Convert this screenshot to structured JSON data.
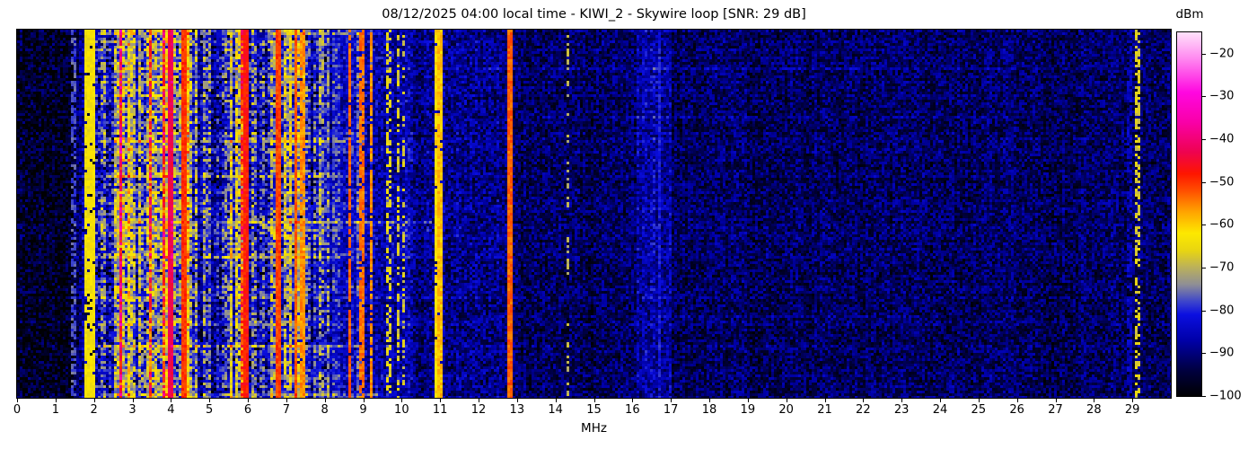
{
  "title": "08/12/2025 04:00 local time - KIWI_2 - Skywire loop [SNR: 29 dB]",
  "axes": {
    "xlabel": "MHz",
    "x_ticks": [
      0,
      1,
      2,
      3,
      4,
      5,
      6,
      7,
      8,
      9,
      10,
      11,
      12,
      13,
      14,
      15,
      16,
      17,
      18,
      19,
      20,
      21,
      22,
      23,
      24,
      25,
      26,
      27,
      28,
      29
    ],
    "y_axis": "time (no ticks shown)"
  },
  "colorbar": {
    "label": "dBm",
    "ticks": [
      -20,
      -30,
      -40,
      -50,
      -60,
      -70,
      -80,
      -90,
      -100
    ],
    "range": [
      -100,
      -15
    ],
    "stops": [
      {
        "dbm": -100,
        "color": "#000002"
      },
      {
        "dbm": -94,
        "color": "#000040"
      },
      {
        "dbm": -87,
        "color": "#0000a8"
      },
      {
        "dbm": -81,
        "color": "#0b0fe0"
      },
      {
        "dbm": -78,
        "color": "#3c44cc"
      },
      {
        "dbm": -74,
        "color": "#8e8e96"
      },
      {
        "dbm": -70,
        "color": "#bab05c"
      },
      {
        "dbm": -66,
        "color": "#e8d511"
      },
      {
        "dbm": -62,
        "color": "#fde900"
      },
      {
        "dbm": -57,
        "color": "#ffa400"
      },
      {
        "dbm": -52,
        "color": "#ff4e00"
      },
      {
        "dbm": -48,
        "color": "#fe1500"
      },
      {
        "dbm": -43,
        "color": "#ee0350"
      },
      {
        "dbm": -36,
        "color": "#f900a8"
      },
      {
        "dbm": -29,
        "color": "#ff07e0"
      },
      {
        "dbm": -21,
        "color": "#ff8af0"
      },
      {
        "dbm": -15,
        "color": "#ffe2fb"
      }
    ]
  },
  "chart_data": {
    "type": "heatmap",
    "title": "08/12/2025 04:00 local time - KIWI_2 - Skywire loop [SNR: 29 dB]",
    "xlabel": "MHz",
    "x_range": [
      0,
      30
    ],
    "value_unit": "dBm",
    "value_range": [
      -100,
      -15
    ],
    "description": "HF spectrogram waterfall: quiet noise floor near -95 dBm at 0-1.5 MHz and above 13 MHz; dense broadcast/utility activity from 2 to 7.5 MHz reaching -45 dBm with occasional -40 dBm magenta columns near 4 MHz; isolated strong carriers near 10.9-11.0 and 12.8 MHz; slightly elevated blue band 16.1-17 MHz; sparse dotted carriers near 29 MHz.",
    "bands": [
      {
        "f0": 0.0,
        "f1": 1.5,
        "base": -96,
        "col_var": 1.5,
        "noise": 7,
        "row": 0.3,
        "hot": 0,
        "hot_boost": 0,
        "pink": 0
      },
      {
        "f0": 1.5,
        "f1": 2.05,
        "base": -90,
        "col_var": 4,
        "noise": 7,
        "row": 0.5,
        "hot": 0.02,
        "hot_boost": 10,
        "pink": 0
      },
      {
        "f0": 2.05,
        "f1": 2.55,
        "base": -77,
        "col_var": 10,
        "noise": 8.5,
        "row": 1,
        "hot": 0.08,
        "hot_boost": 14,
        "pink": 0
      },
      {
        "f0": 2.55,
        "f1": 4.45,
        "base": -71,
        "col_var": 12,
        "noise": 9,
        "row": 1,
        "hot": 0.17,
        "hot_boost": 15,
        "pink": 0.025
      },
      {
        "f0": 4.45,
        "f1": 5.35,
        "base": -78,
        "col_var": 10,
        "noise": 8.5,
        "row": 1,
        "hot": 0.06,
        "hot_boost": 15,
        "pink": 0
      },
      {
        "f0": 5.35,
        "f1": 6.45,
        "base": -74,
        "col_var": 12,
        "noise": 9,
        "row": 1,
        "hot": 0.13,
        "hot_boost": 15,
        "pink": 0.004
      },
      {
        "f0": 6.45,
        "f1": 7.55,
        "base": -74,
        "col_var": 12,
        "noise": 9,
        "row": 1,
        "hot": 0.12,
        "hot_boost": 15,
        "pink": 0
      },
      {
        "f0": 7.55,
        "f1": 8.15,
        "base": -80,
        "col_var": 8,
        "noise": 8,
        "row": 0.8,
        "hot": 0.04,
        "hot_boost": 13,
        "pink": 0
      },
      {
        "f0": 8.15,
        "f1": 9.35,
        "base": -84,
        "col_var": 4,
        "noise": 7,
        "row": 0.6,
        "hot": 0.02,
        "hot_boost": 8,
        "pink": 0
      },
      {
        "f0": 9.35,
        "f1": 10.35,
        "base": -86,
        "col_var": 3,
        "noise": 7,
        "row": 0.5,
        "hot": 0.01,
        "hot_boost": 6,
        "pink": 0
      },
      {
        "f0": 10.35,
        "f1": 12.75,
        "base": -89,
        "col_var": 2,
        "noise": 7,
        "row": 0.4,
        "hot": 0,
        "hot_boost": 0,
        "pink": 0
      },
      {
        "f0": 12.75,
        "f1": 16.1,
        "base": -92,
        "col_var": 1.5,
        "noise": 6.5,
        "row": 0.3,
        "hot": 0,
        "hot_boost": 0,
        "pink": 0
      },
      {
        "f0": 16.1,
        "f1": 17.05,
        "base": -87,
        "col_var": 2,
        "noise": 6.5,
        "row": 0.4,
        "hot": 0,
        "hot_boost": 0,
        "pink": 0
      },
      {
        "f0": 17.05,
        "f1": 30.0,
        "base": -92,
        "col_var": 1.5,
        "noise": 6.5,
        "row": 0.3,
        "hot": 0,
        "hot_boost": 0,
        "pink": 0
      }
    ],
    "carriers": [
      {
        "f": 1.47,
        "w": 2,
        "dbm": -77,
        "duty": 0.6
      },
      {
        "f": 1.84,
        "w": 2,
        "dbm": -64,
        "duty": 0.9
      },
      {
        "f": 1.95,
        "w": 2,
        "dbm": -63,
        "duty": 0.95
      },
      {
        "f": 3.97,
        "w": 3,
        "dbm": -43,
        "duty": 1
      },
      {
        "f": 4.33,
        "w": 2,
        "dbm": -50,
        "duty": 1
      },
      {
        "f": 5.93,
        "w": 3,
        "dbm": -48,
        "duty": 1
      },
      {
        "f": 6.79,
        "w": 2,
        "dbm": -51,
        "duty": 1
      },
      {
        "f": 7.24,
        "w": 2,
        "dbm": -53,
        "duty": 1
      },
      {
        "f": 7.43,
        "w": 2,
        "dbm": -56,
        "duty": 0.9
      },
      {
        "f": 8.66,
        "w": 2,
        "dbm": -53,
        "duty": 0.9
      },
      {
        "f": 8.98,
        "w": 2,
        "dbm": -54,
        "duty": 0.85
      },
      {
        "f": 9.21,
        "w": 2,
        "dbm": -56,
        "duty": 0.8
      },
      {
        "f": 9.65,
        "w": 2,
        "dbm": -66,
        "duty": 0.5
      },
      {
        "f": 9.9,
        "w": 2,
        "dbm": -67,
        "duty": 0.45
      },
      {
        "f": 10.05,
        "w": 2,
        "dbm": -68,
        "duty": 0.4
      },
      {
        "f": 10.92,
        "w": 2,
        "dbm": -61,
        "duty": 0.95
      },
      {
        "f": 11.01,
        "w": 2,
        "dbm": -59,
        "duty": 0.95
      },
      {
        "f": 12.83,
        "w": 3,
        "dbm": -53,
        "duty": 1
      },
      {
        "f": 14.32,
        "w": 2,
        "dbm": -70,
        "duty": 0.3
      },
      {
        "f": 16.7,
        "w": 2,
        "dbm": -81,
        "duty": 0.8
      },
      {
        "f": 28.93,
        "w": 2,
        "dbm": -84,
        "duty": 0.5
      },
      {
        "f": 29.12,
        "w": 2,
        "dbm": -67,
        "duty": 0.5
      }
    ],
    "streaks": [
      {
        "frac": 0.005,
        "boost": 8,
        "f0": 1.8,
        "f1": 9.5
      },
      {
        "frac": 0.1,
        "boost": 3,
        "f0": 12,
        "f1": 26
      },
      {
        "frac": 0.235,
        "boost": 3.5,
        "f0": 13.5,
        "f1": 26
      },
      {
        "frac": 0.3,
        "boost": 5,
        "f0": 1.8,
        "f1": 9
      },
      {
        "frac": 0.395,
        "boost": 4,
        "f0": 1.8,
        "f1": 8.5
      },
      {
        "frac": 0.525,
        "boost": 11,
        "f0": 1.8,
        "f1": 10.8
      },
      {
        "frac": 0.545,
        "boost": 5,
        "f0": 1.8,
        "f1": 10.8
      },
      {
        "frac": 0.62,
        "boost": 4,
        "f0": 1.8,
        "f1": 8.5
      },
      {
        "frac": 0.72,
        "boost": 4,
        "f0": 2,
        "f1": 8
      },
      {
        "frac": 0.78,
        "boost": 3,
        "f0": 12,
        "f1": 24
      },
      {
        "frac": 0.86,
        "boost": 5,
        "f0": 1.8,
        "f1": 9
      },
      {
        "frac": 0.995,
        "boost": 8,
        "f0": 1.8,
        "f1": 9.5
      }
    ],
    "render": {
      "seed": 1337,
      "cell": 3,
      "row_mod_db": 4
    }
  }
}
